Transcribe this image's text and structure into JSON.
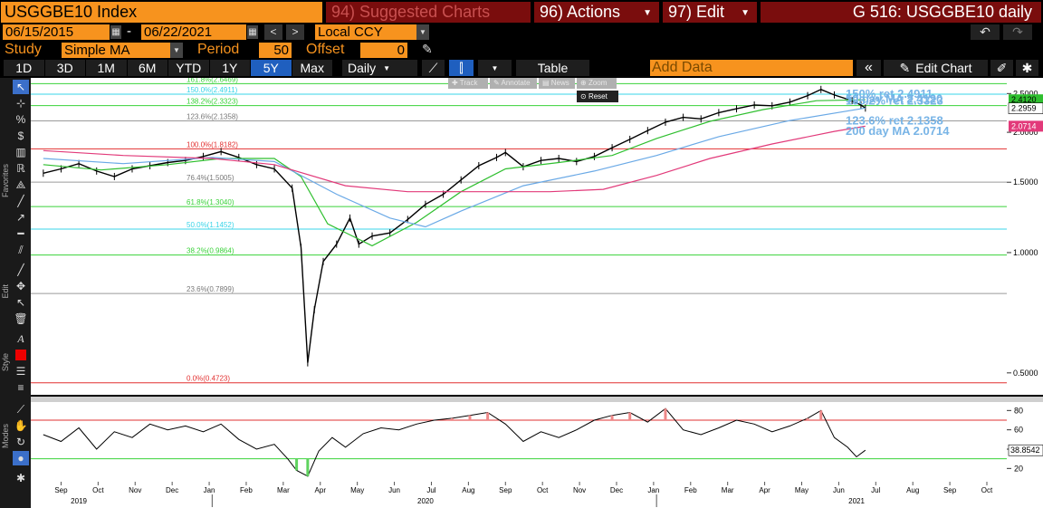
{
  "header": {
    "ticker": "USGGBE10 Index",
    "suggested": "94) Suggested Charts",
    "actions": "96) Actions",
    "edit": "97) Edit",
    "security_title": "G 516: USGGBE10 daily"
  },
  "controls": {
    "date_from": "06/15/2015",
    "date_to": "06/22/2021",
    "date_sep": "-",
    "currency": "Local CCY",
    "study_label": "Study",
    "study_value": "Simple MA",
    "period_label": "Period",
    "period_value": "50",
    "offset_label": "Offset",
    "offset_value": "0"
  },
  "toolbar": {
    "ranges": [
      "1D",
      "3D",
      "1M",
      "6M",
      "YTD",
      "1Y",
      "5Y",
      "Max"
    ],
    "active_range": "5Y",
    "frequency": "Daily",
    "table": "Table",
    "add_data_placeholder": "Add Data",
    "edit_chart": "Edit Chart"
  },
  "popup": {
    "track": "Track",
    "annotate": "Annotate",
    "news": "News",
    "zoom": "Zoom",
    "reset": "Reset"
  },
  "side_labels": {
    "favorites": "Favorites",
    "edit": "Edit",
    "style": "Style",
    "modes": "Modes"
  },
  "colors": {
    "accent_orange": "#f7931e",
    "dark_red": "#7a0d0d",
    "active_blue": "#1f5fbf",
    "ma50": "#2fbf2f",
    "ma100": "#6aa9e6",
    "ma200": "#e23a7a",
    "price": "#000000",
    "fib_green": "#3ad23a",
    "fib_cyan": "#39d4e8",
    "fib_red": "#e23030"
  },
  "chart_data": [
    {
      "type": "line",
      "series": [
        {
          "values": [
            [
              2019.62,
              1.58
            ],
            [
              2019.66,
              1.62
            ],
            [
              2019.7,
              1.67
            ],
            [
              2019.74,
              1.6
            ],
            [
              2019.78,
              1.55
            ],
            [
              2019.82,
              1.62
            ],
            [
              2019.86,
              1.65
            ],
            [
              2019.9,
              1.68
            ],
            [
              2019.94,
              1.7
            ],
            [
              2019.98,
              1.74
            ],
            [
              2020.02,
              1.79
            ],
            [
              2020.06,
              1.73
            ],
            [
              2020.1,
              1.66
            ],
            [
              2020.14,
              1.62
            ],
            [
              2020.18,
              1.45
            ],
            [
              2020.2,
              1.03
            ],
            [
              2020.215,
              0.53
            ],
            [
              2020.23,
              0.72
            ],
            [
              2020.25,
              0.95
            ],
            [
              2020.28,
              1.05
            ],
            [
              2020.31,
              1.22
            ],
            [
              2020.33,
              1.05
            ],
            [
              2020.36,
              1.1
            ],
            [
              2020.4,
              1.12
            ],
            [
              2020.44,
              1.21
            ],
            [
              2020.48,
              1.32
            ],
            [
              2020.52,
              1.4
            ],
            [
              2020.56,
              1.52
            ],
            [
              2020.6,
              1.65
            ],
            [
              2020.64,
              1.73
            ],
            [
              2020.66,
              1.78
            ],
            [
              2020.7,
              1.64
            ],
            [
              2020.74,
              1.7
            ],
            [
              2020.78,
              1.72
            ],
            [
              2020.82,
              1.69
            ],
            [
              2020.86,
              1.74
            ],
            [
              2020.9,
              1.83
            ],
            [
              2020.94,
              1.92
            ],
            [
              2020.98,
              2.02
            ],
            [
              2021.02,
              2.12
            ],
            [
              2021.06,
              2.18
            ],
            [
              2021.1,
              2.16
            ],
            [
              2021.14,
              2.24
            ],
            [
              2021.18,
              2.29
            ],
            [
              2021.22,
              2.34
            ],
            [
              2021.26,
              2.33
            ],
            [
              2021.3,
              2.38
            ],
            [
              2021.34,
              2.47
            ],
            [
              2021.37,
              2.56
            ],
            [
              2021.4,
              2.48
            ],
            [
              2021.44,
              2.4
            ],
            [
              2021.46,
              2.34
            ],
            [
              2021.47,
              2.3
            ]
          ]
        },
        {
          "name": "50 day MA 2.4120",
          "values": [
            [
              2019.62,
              1.66
            ],
            [
              2019.75,
              1.61
            ],
            [
              2019.9,
              1.66
            ],
            [
              2020.02,
              1.72
            ],
            [
              2020.14,
              1.72
            ],
            [
              2020.2,
              1.55
            ],
            [
              2020.26,
              1.18
            ],
            [
              2020.36,
              1.04
            ],
            [
              2020.46,
              1.19
            ],
            [
              2020.56,
              1.42
            ],
            [
              2020.66,
              1.62
            ],
            [
              2020.78,
              1.68
            ],
            [
              2020.9,
              1.75
            ],
            [
              2021.0,
              1.93
            ],
            [
              2021.12,
              2.13
            ],
            [
              2021.24,
              2.28
            ],
            [
              2021.36,
              2.4
            ],
            [
              2021.47,
              2.412
            ]
          ]
        },
        {
          "name": "",
          "values": [
            [
              2019.62,
              1.72
            ],
            [
              2019.8,
              1.67
            ],
            [
              2020.0,
              1.73
            ],
            [
              2020.14,
              1.69
            ],
            [
              2020.28,
              1.4
            ],
            [
              2020.4,
              1.22
            ],
            [
              2020.48,
              1.16
            ],
            [
              2020.56,
              1.27
            ],
            [
              2020.7,
              1.47
            ],
            [
              2020.86,
              1.6
            ],
            [
              2021.0,
              1.75
            ],
            [
              2021.14,
              1.95
            ],
            [
              2021.3,
              2.14
            ],
            [
              2021.47,
              2.3
            ]
          ]
        },
        {
          "name": "200 day MA 2.0714",
          "values": [
            [
              2019.62,
              1.8
            ],
            [
              2019.8,
              1.75
            ],
            [
              2020.0,
              1.72
            ],
            [
              2020.14,
              1.66
            ],
            [
              2020.3,
              1.47
            ],
            [
              2020.44,
              1.42
            ],
            [
              2020.6,
              1.42
            ],
            [
              2020.76,
              1.42
            ],
            [
              2020.88,
              1.44
            ],
            [
              2021.0,
              1.56
            ],
            [
              2021.12,
              1.72
            ],
            [
              2021.26,
              1.87
            ],
            [
              2021.4,
              2.01
            ],
            [
              2021.47,
              2.0714
            ]
          ]
        }
      ],
      "fib_levels": [
        {
          "label": "161.8%(2.6469)",
          "value": 2.6469
        },
        {
          "label": "150.0%(2.4911)",
          "value": 2.4911
        },
        {
          "label": "138.2%(2.3323)",
          "value": 2.3323
        },
        {
          "label": "123.6%(2.1358)",
          "value": 2.1358
        },
        {
          "label": "100.0%(1.8182)",
          "value": 1.8182
        },
        {
          "label": "76.4%(1.5005)",
          "value": 1.5005
        },
        {
          "label": "61.8%(1.3040)",
          "value": 1.304
        },
        {
          "label": "50.0%(1.1452)",
          "value": 1.1452
        },
        {
          "label": "38.2%(0.9864)",
          "value": 0.9864
        },
        {
          "label": "23.6%(0.7899)",
          "value": 0.7899
        },
        {
          "label": "0.0%(0.4723)",
          "value": 0.4723
        }
      ],
      "annotations": [
        "150% ret 2.4911",
        "50 day MA 2.4120",
        "138.2% ret 2.3323",
        "123.6% ret 2.1358",
        "200 day MA 2.0714"
      ],
      "yticks": [
        "2.5000",
        "2.0000",
        "1.5000",
        "1.0000",
        "0.5000"
      ],
      "last_value_labels": [
        "2.4120",
        "2.2959",
        "2.0714"
      ],
      "ylim": [
        0.45,
        2.68
      ],
      "y_scale": "log"
    },
    {
      "type": "line",
      "series": [
        {
          "values": [
            [
              2019.62,
              55
            ],
            [
              2019.66,
              48
            ],
            [
              2019.7,
              62
            ],
            [
              2019.74,
              40
            ],
            [
              2019.78,
              58
            ],
            [
              2019.82,
              52
            ],
            [
              2019.86,
              66
            ],
            [
              2019.9,
              60
            ],
            [
              2019.94,
              64
            ],
            [
              2019.98,
              58
            ],
            [
              2020.02,
              66
            ],
            [
              2020.06,
              50
            ],
            [
              2020.1,
              40
            ],
            [
              2020.14,
              45
            ],
            [
              2020.17,
              30
            ],
            [
              2020.19,
              18
            ],
            [
              2020.215,
              12
            ],
            [
              2020.24,
              38
            ],
            [
              2020.27,
              52
            ],
            [
              2020.3,
              42
            ],
            [
              2020.34,
              56
            ],
            [
              2020.38,
              62
            ],
            [
              2020.42,
              60
            ],
            [
              2020.46,
              66
            ],
            [
              2020.5,
              70
            ],
            [
              2020.54,
              72
            ],
            [
              2020.58,
              75
            ],
            [
              2020.62,
              78
            ],
            [
              2020.66,
              66
            ],
            [
              2020.7,
              48
            ],
            [
              2020.74,
              58
            ],
            [
              2020.78,
              52
            ],
            [
              2020.82,
              60
            ],
            [
              2020.86,
              70
            ],
            [
              2020.9,
              75
            ],
            [
              2020.94,
              78
            ],
            [
              2020.98,
              68
            ],
            [
              2021.02,
              82
            ],
            [
              2021.06,
              60
            ],
            [
              2021.1,
              55
            ],
            [
              2021.14,
              62
            ],
            [
              2021.18,
              70
            ],
            [
              2021.22,
              66
            ],
            [
              2021.26,
              58
            ],
            [
              2021.3,
              64
            ],
            [
              2021.34,
              72
            ],
            [
              2021.37,
              80
            ],
            [
              2021.4,
              52
            ],
            [
              2021.43,
              42
            ],
            [
              2021.45,
              32
            ],
            [
              2021.47,
              38.8542
            ]
          ]
        }
      ],
      "levels": [
        70,
        30
      ],
      "yticks": [
        "80",
        "60",
        "40",
        "20"
      ],
      "last_value_label": "38.8542",
      "ylim": [
        10,
        85
      ],
      "xticks": [
        "Sep",
        "Oct",
        "Nov",
        "Dec",
        "Jan",
        "Feb",
        "Mar",
        "Apr",
        "May",
        "Jun",
        "Jul",
        "Aug",
        "Sep",
        "Oct",
        "Nov",
        "Dec",
        "Jan",
        "Feb",
        "Mar",
        "Apr",
        "May",
        "Jun",
        "Jul",
        "Aug",
        "Sep",
        "Oct"
      ],
      "years": [
        "2019",
        "2020",
        "2021"
      ]
    }
  ]
}
